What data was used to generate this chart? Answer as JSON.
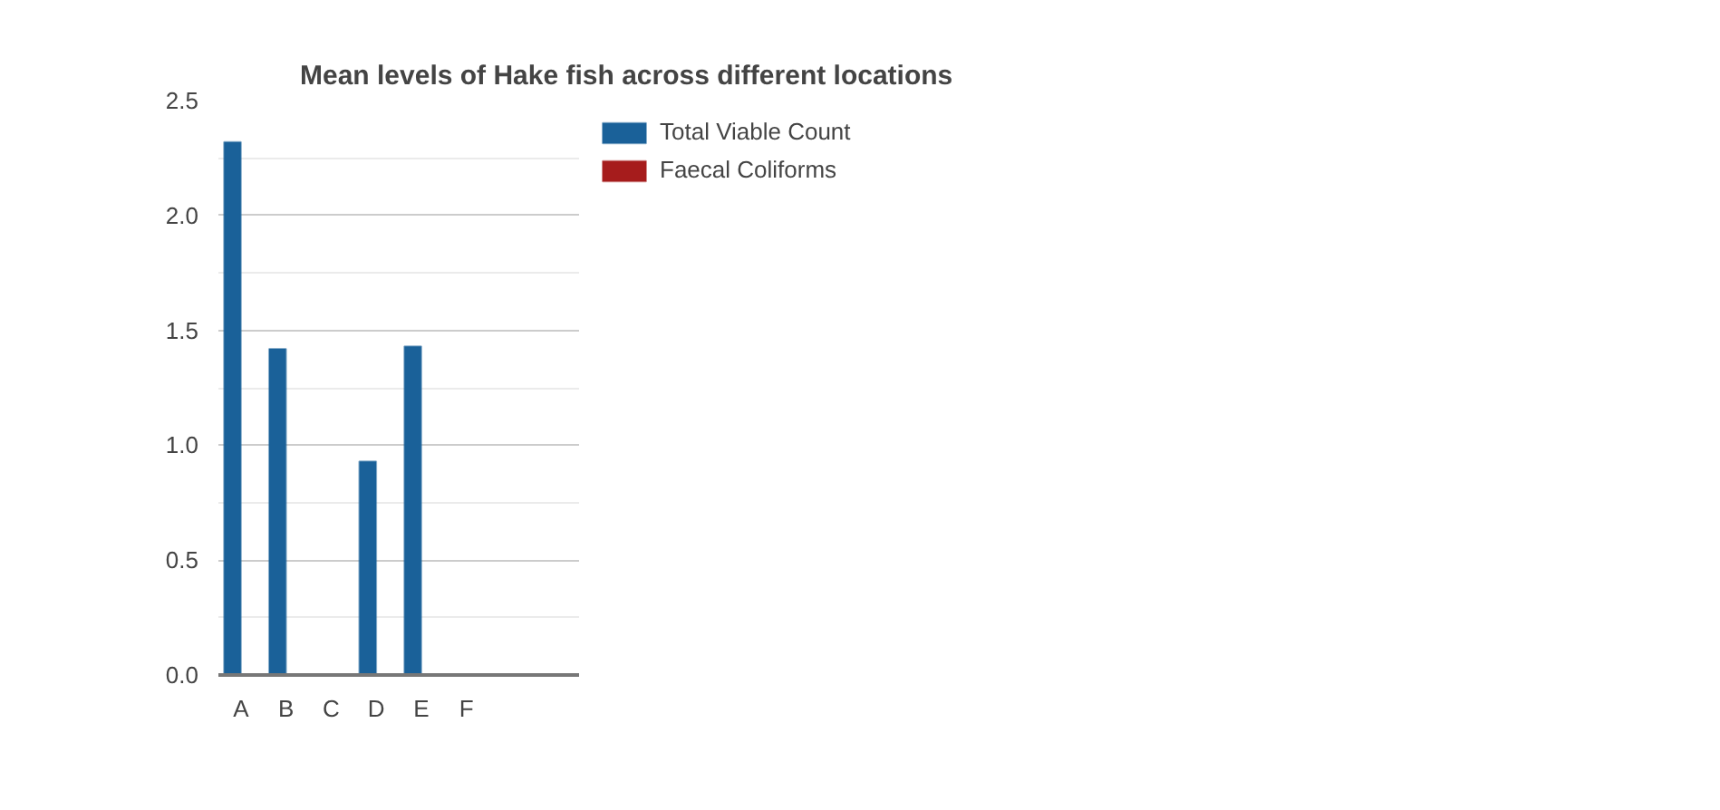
{
  "chart_data": {
    "type": "bar",
    "title": "Mean levels of Hake fish across different locations",
    "categories": [
      "A",
      "B",
      "C",
      "D",
      "E",
      "F",
      null,
      null
    ],
    "series": [
      {
        "name": "Total Viable Count",
        "color": "#1a6199",
        "values": [
          2.32,
          1.42,
          0,
          0.93,
          1.43,
          0,
          0,
          0
        ]
      },
      {
        "name": "Faecal Coliforms",
        "color": "#a61c1c",
        "values": [
          0,
          0,
          0,
          0,
          0,
          0,
          0,
          null
        ]
      }
    ],
    "ylim": [
      0,
      2.5
    ],
    "yticks": [
      {
        "value": 0,
        "label": "0.0"
      },
      {
        "value": 0.5,
        "label": "0.5"
      },
      {
        "value": 1,
        "label": "1.0"
      },
      {
        "value": 1.5,
        "label": "1.5"
      },
      {
        "value": 2,
        "label": "2.0"
      },
      {
        "value": 2.5,
        "label": "2.5"
      }
    ],
    "grid": "y",
    "legend": "top right"
  }
}
